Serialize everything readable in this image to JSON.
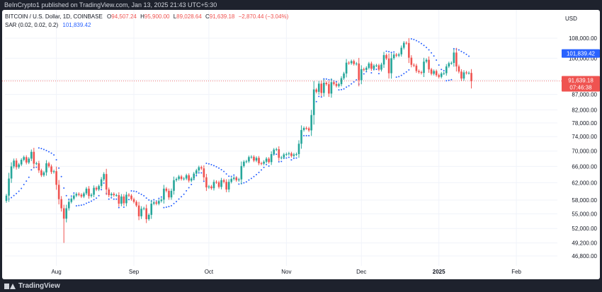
{
  "attribution": "BeInCrypto1 published on TradingView.com, Jan 13, 2025 21:43 UTC+5:30",
  "footer": {
    "brand": "TradingView"
  },
  "legend": {
    "symbol": "BITCOIN / U.S. Dollar, 1D, COINBASE",
    "open_label": "O",
    "open": "94,507.24",
    "high_label": "H",
    "high": "95,900.00",
    "low_label": "L",
    "low": "89,028.64",
    "close_label": "C",
    "close": "91,639.18",
    "change": "−2,870.44 (−3.04%)",
    "sar_label": "SAR (0.02, 0.02, 0.2)",
    "sar_value": "101,839.42"
  },
  "colors": {
    "up": "#26a69a",
    "down": "#ef5350",
    "sar": "#2962ff",
    "price_line": "#ef5350",
    "grid": "#f0f3fa",
    "axis_text": "#131722"
  },
  "chart_data": {
    "type": "candlestick",
    "title": "BITCOIN / U.S. Dollar, 1D, COINBASE",
    "currency": "USD",
    "y_axis_scale": "log",
    "y_ticks": [
      46800,
      49200,
      52000,
      55000,
      58000,
      62000,
      66000,
      70000,
      74000,
      78000,
      82000,
      87000,
      92000,
      100000,
      108000
    ],
    "y_tick_labels": [
      "46,800.00",
      "49,200.00",
      "52,000.00",
      "55,000.00",
      "58,000.00",
      "62,000.00",
      "66,000.00",
      "70,000.00",
      "74,000.00",
      "78,000.00",
      "82,000.00",
      "87,000.00",
      "92,000.00",
      "100,000.00",
      "108,000.00"
    ],
    "x_ticks": [
      {
        "day": 20,
        "label": "Aug",
        "bold": false
      },
      {
        "day": 51,
        "label": "Sep",
        "bold": false
      },
      {
        "day": 81,
        "label": "Oct",
        "bold": false
      },
      {
        "day": 112,
        "label": "Nov",
        "bold": false
      },
      {
        "day": 142,
        "label": "Dec",
        "bold": false
      },
      {
        "day": 173,
        "label": "2025",
        "bold": true
      },
      {
        "day": 204,
        "label": "Feb",
        "bold": false
      }
    ],
    "x_domain_days": [
      0,
      216
    ],
    "last_price": {
      "value": 91639.18,
      "label": "91,639.18",
      "countdown": "07:46:38"
    },
    "sar_badge": {
      "value": 101839.42,
      "label": "101,839.42"
    },
    "closes": [
      59000,
      63000,
      66000,
      67500,
      65800,
      66500,
      67700,
      68400,
      67000,
      68000,
      69800,
      66700,
      66800,
      65000,
      63800,
      64500,
      66800,
      66000,
      64600,
      64800,
      61500,
      58200,
      56200,
      54000,
      56200,
      57600,
      58300,
      59000,
      59400,
      59200,
      58800,
      59500,
      60600,
      58900,
      59200,
      60800,
      60400,
      61200,
      62800,
      64100,
      60400,
      59100,
      59400,
      59100,
      59100,
      57200,
      58800,
      57300,
      59200,
      59000,
      58200,
      57600,
      56800,
      54500,
      56100,
      56200,
      53900,
      54800,
      57200,
      57500,
      57200,
      57800,
      58100,
      60600,
      60100,
      58600,
      60100,
      62600,
      62900,
      63500,
      62900,
      63000,
      63800,
      62500,
      63000,
      64200,
      65000,
      65800,
      65500,
      63300,
      60900,
      61100,
      60700,
      62200,
      62100,
      61000,
      62600,
      62200,
      60400,
      62200,
      62900,
      63200,
      62600,
      62800,
      66100,
      67200,
      67300,
      68400,
      68500,
      67500,
      68200,
      66800,
      66700,
      67200,
      68000,
      67100,
      69200,
      70400,
      70500,
      68200,
      68300,
      69100,
      69200,
      69400,
      68700,
      69100,
      69200,
      72000,
      75900,
      76500,
      76400,
      75800,
      80400,
      88700,
      87900,
      90700,
      87500,
      91000,
      90500,
      87300,
      91200,
      90600,
      89900,
      90500,
      92600,
      94300,
      98300,
      98100,
      98900,
      97800,
      98000,
      91900,
      95900,
      95600,
      96400,
      98000,
      96000,
      97200,
      97300,
      95700,
      97600,
      101200,
      99900,
      94400,
      100000,
      101400,
      101000,
      101500,
      104100,
      106100,
      106000,
      100200,
      97500,
      97200,
      95200,
      94800,
      94500,
      98700,
      99400,
      95800,
      94200,
      95200,
      93700,
      93100,
      94300,
      94400,
      96900,
      98100,
      98200,
      102200,
      96900,
      95000,
      92500,
      94700,
      94500,
      94500,
      91600
    ],
    "sar_segments": [
      {
        "start": 0,
        "end": 13,
        "dir": "below"
      },
      {
        "start": 13,
        "end": 28,
        "dir": "above"
      },
      {
        "start": 28,
        "end": 50,
        "dir": "below"
      },
      {
        "start": 50,
        "end": 63,
        "dir": "above"
      },
      {
        "start": 63,
        "end": 80,
        "dir": "below"
      },
      {
        "start": 80,
        "end": 93,
        "dir": "above"
      },
      {
        "start": 93,
        "end": 127,
        "dir": "below"
      },
      {
        "start": 127,
        "end": 133,
        "dir": "above"
      },
      {
        "start": 133,
        "end": 152,
        "dir": "below"
      },
      {
        "start": 152,
        "end": 156,
        "dir": "above"
      },
      {
        "start": 156,
        "end": 162,
        "dir": "below"
      },
      {
        "start": 162,
        "end": 176,
        "dir": "above"
      },
      {
        "start": 176,
        "end": 179,
        "dir": "below"
      },
      {
        "start": 179,
        "end": 186,
        "dir": "above"
      }
    ]
  }
}
